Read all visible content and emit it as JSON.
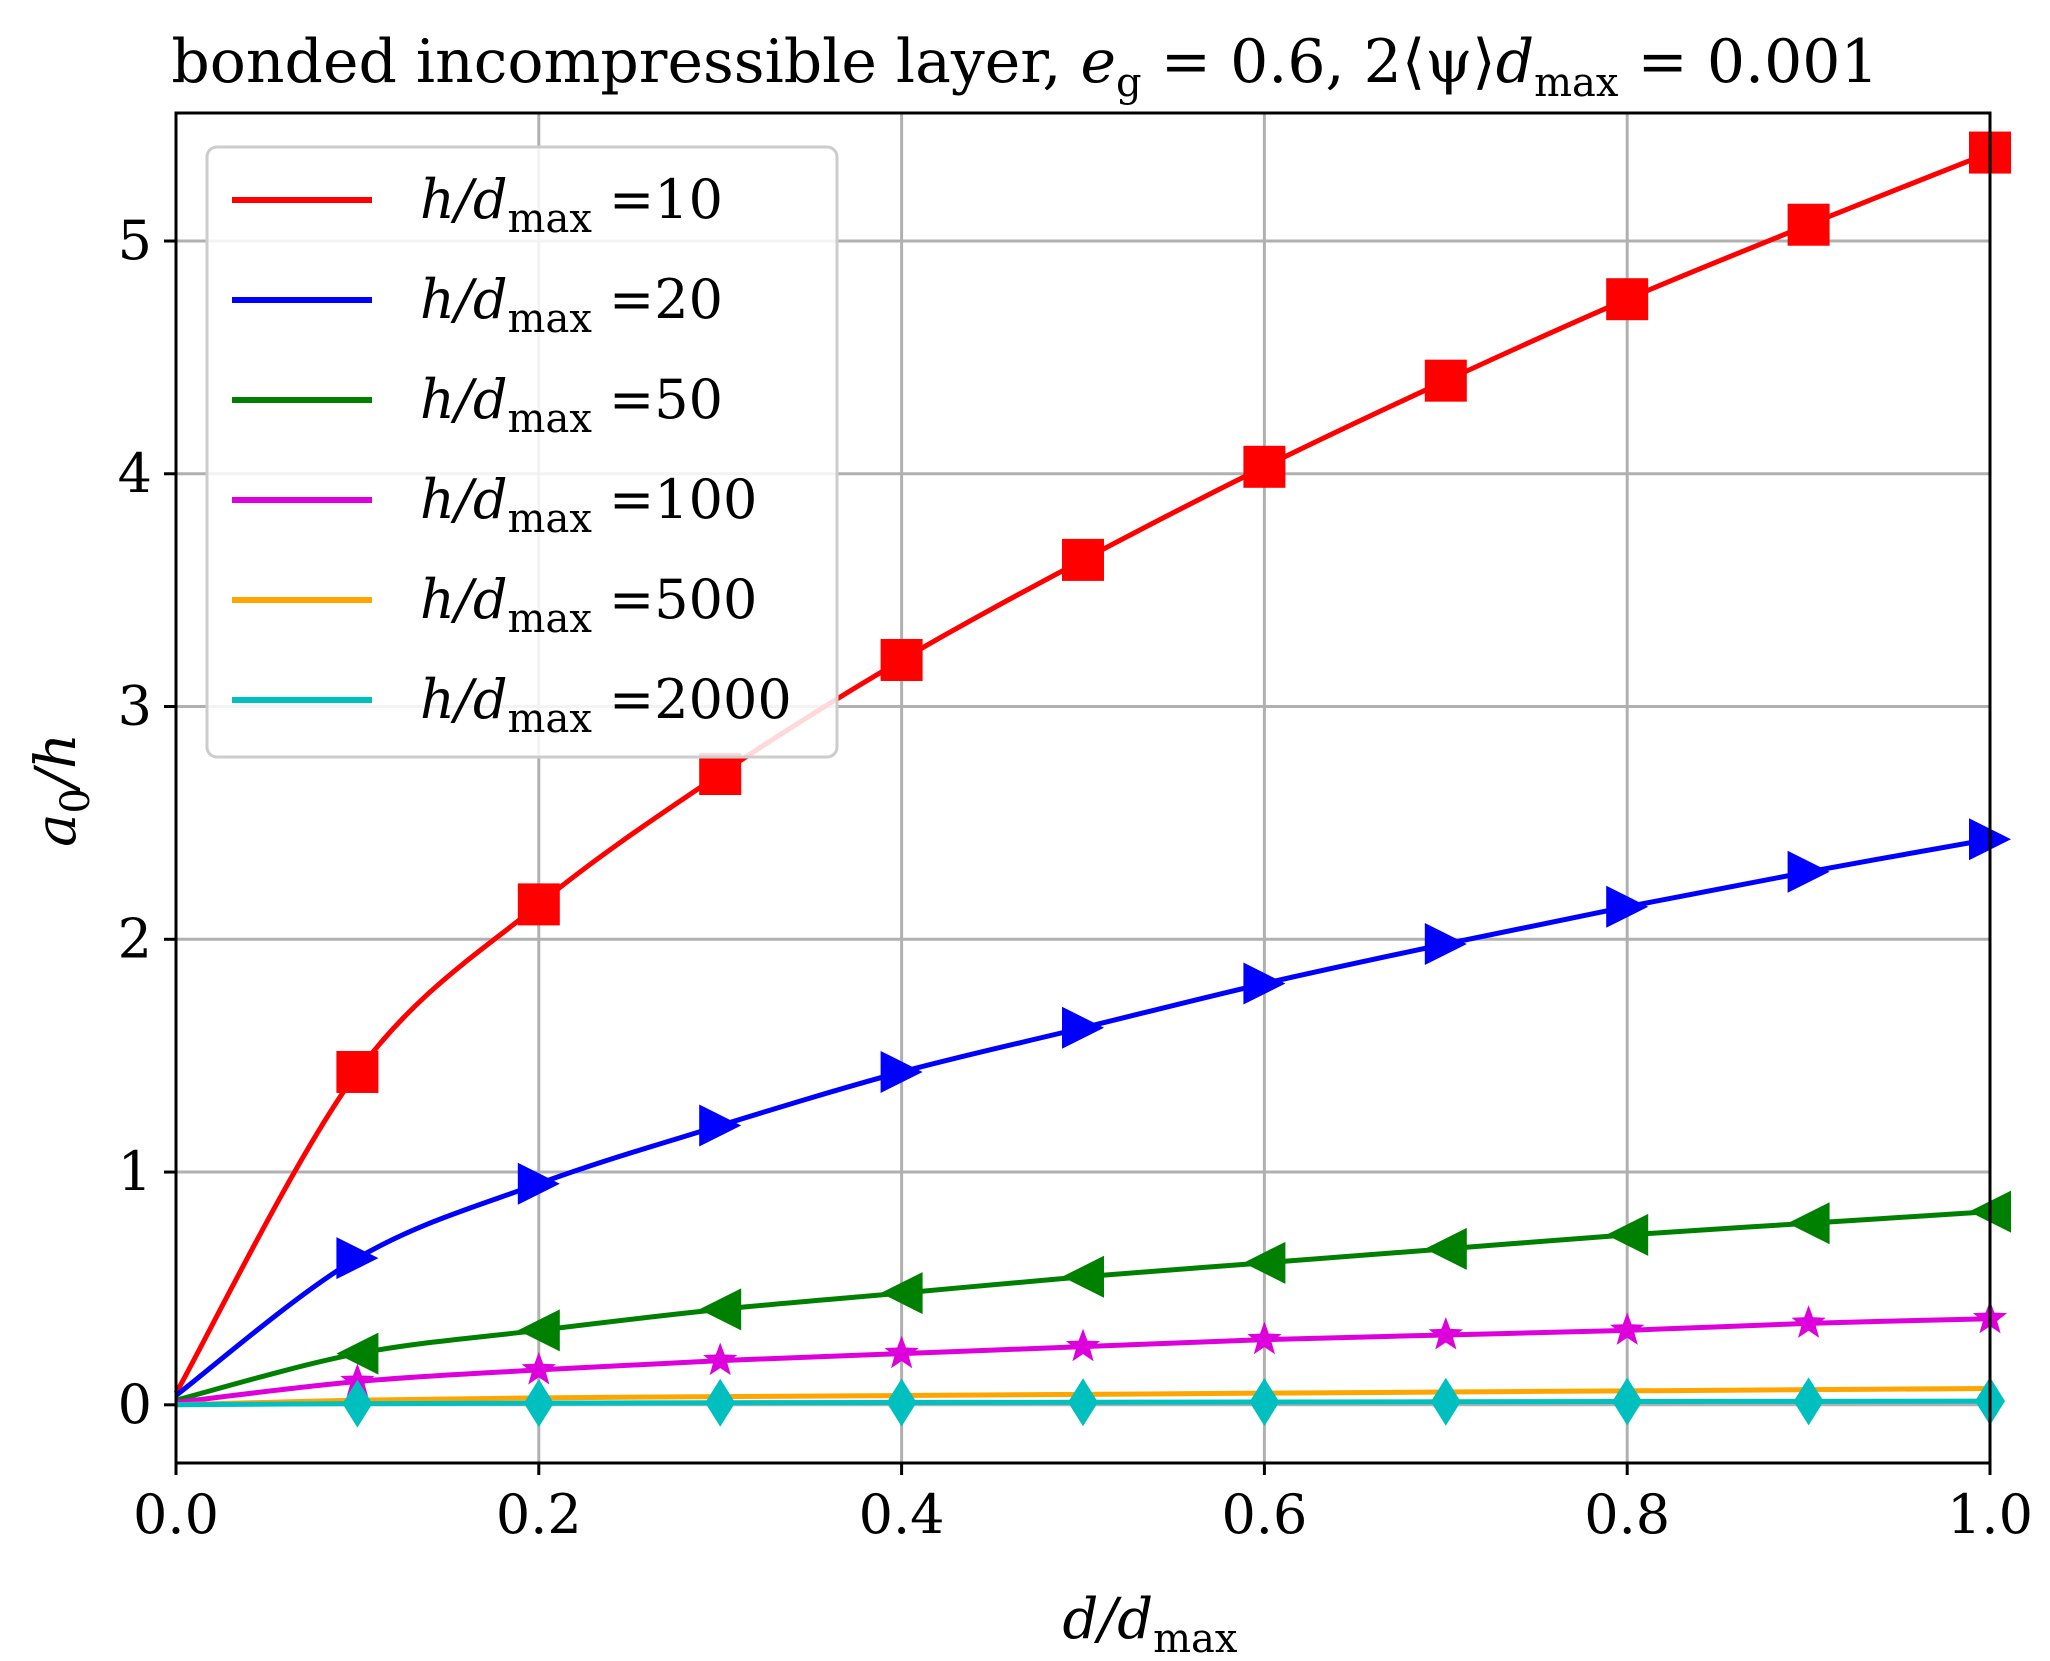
{
  "chart_data": {
    "type": "line",
    "title_parts": {
      "prefix": "bonded incompressible layer, ",
      "eg_symbol": "e",
      "eg_sub": "g",
      "eg_value": " = 0.6, 2⟨ψ⟩",
      "d_symbol": "d",
      "d_sub": "max",
      "d_value": " = 0.001"
    },
    "xlabel": {
      "main": "d/d",
      "sub": "max"
    },
    "ylabel": {
      "main": "a",
      "sub": "0",
      "tail": "/h"
    },
    "xlim": [
      0.0,
      1.0
    ],
    "ylim": [
      -0.25,
      5.55
    ],
    "xticks": [
      "0.0",
      "0.2",
      "0.4",
      "0.6",
      "0.8",
      "1.0"
    ],
    "yticks": [
      "0",
      "1",
      "2",
      "3",
      "4",
      "5"
    ],
    "grid": true,
    "legend_position": "upper-left",
    "series": [
      {
        "name": "h/d_max =10",
        "legend_prefix": "h/d",
        "legend_sub": "max",
        "legend_value": " =10",
        "color": "#ff0000",
        "marker": "square",
        "x": [
          0.0,
          0.1,
          0.2,
          0.3,
          0.4,
          0.5,
          0.6,
          0.7,
          0.8,
          0.9,
          1.0
        ],
        "values": [
          0.05,
          1.43,
          2.15,
          2.71,
          3.2,
          3.63,
          4.03,
          4.4,
          4.75,
          5.07,
          5.38
        ]
      },
      {
        "name": "h/d_max =20",
        "legend_prefix": "h/d",
        "legend_sub": "max",
        "legend_value": " =20",
        "color": "#0000ff",
        "marker": "triangle-right",
        "x": [
          0.0,
          0.1,
          0.2,
          0.3,
          0.4,
          0.5,
          0.6,
          0.7,
          0.8,
          0.9,
          1.0
        ],
        "values": [
          0.04,
          0.63,
          0.95,
          1.2,
          1.43,
          1.62,
          1.81,
          1.98,
          2.14,
          2.29,
          2.43
        ]
      },
      {
        "name": "h/d_max =50",
        "legend_prefix": "h/d",
        "legend_sub": "max",
        "legend_value": " =50",
        "color": "#008000",
        "marker": "triangle-left",
        "x": [
          0.0,
          0.1,
          0.2,
          0.3,
          0.4,
          0.5,
          0.6,
          0.7,
          0.8,
          0.9,
          1.0
        ],
        "values": [
          0.02,
          0.22,
          0.32,
          0.41,
          0.48,
          0.55,
          0.61,
          0.67,
          0.73,
          0.78,
          0.83
        ]
      },
      {
        "name": "h/d_max =100",
        "legend_prefix": "h/d",
        "legend_sub": "max",
        "legend_value": " =100",
        "color": "#dd00dd",
        "marker": "star",
        "x": [
          0.0,
          0.1,
          0.2,
          0.3,
          0.4,
          0.5,
          0.6,
          0.7,
          0.8,
          0.9,
          1.0
        ],
        "values": [
          0.01,
          0.1,
          0.15,
          0.19,
          0.22,
          0.25,
          0.28,
          0.3,
          0.32,
          0.35,
          0.37
        ]
      },
      {
        "name": "h/d_max =500",
        "legend_prefix": "h/d",
        "legend_sub": "max",
        "legend_value": " =500",
        "color": "#ffa500",
        "marker": "none",
        "x": [
          0.0,
          0.1,
          0.2,
          0.3,
          0.4,
          0.5,
          0.6,
          0.7,
          0.8,
          0.9,
          1.0
        ],
        "values": [
          0.0,
          0.02,
          0.03,
          0.035,
          0.04,
          0.045,
          0.05,
          0.055,
          0.06,
          0.065,
          0.07
        ]
      },
      {
        "name": "h/d_max =2000",
        "legend_prefix": "h/d",
        "legend_sub": "max",
        "legend_value": " =2000",
        "color": "#00bfbf",
        "marker": "diamond",
        "x": [
          0.0,
          0.1,
          0.2,
          0.3,
          0.4,
          0.5,
          0.6,
          0.7,
          0.8,
          0.9,
          1.0
        ],
        "values": [
          0.0,
          0.005,
          0.007,
          0.009,
          0.01,
          0.011,
          0.012,
          0.013,
          0.014,
          0.015,
          0.016
        ]
      }
    ]
  }
}
